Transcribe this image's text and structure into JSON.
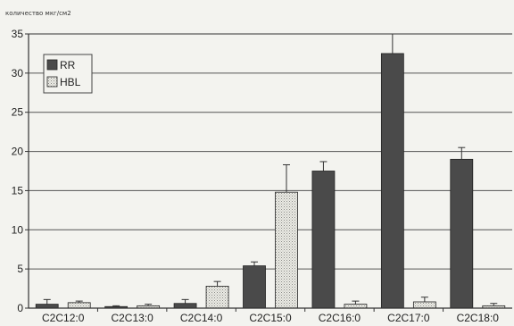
{
  "chart_data": {
    "type": "bar",
    "ylabel": "количество мкг/см2",
    "xlabel": "",
    "ylim": [
      0,
      35
    ],
    "yticks": [
      0,
      5,
      10,
      15,
      20,
      25,
      30,
      35
    ],
    "grid": true,
    "legend_position": "top-left",
    "categories": [
      "C2C12:0",
      "C2C13:0",
      "C2C14:0",
      "C2C15:0",
      "C2C16:0",
      "C2C17:0",
      "C2C18:0"
    ],
    "series": [
      {
        "name": "RR",
        "color": "#4a4a4a",
        "values": [
          0.5,
          0.2,
          0.6,
          5.4,
          17.5,
          32.5,
          19.0
        ],
        "errors": [
          0.6,
          0.1,
          0.5,
          0.5,
          1.2,
          2.5,
          1.5
        ]
      },
      {
        "name": "HBL",
        "color": "#e2e2dc",
        "values": [
          0.7,
          0.3,
          2.8,
          14.8,
          0.5,
          0.8,
          0.3
        ],
        "errors": [
          0.2,
          0.2,
          0.6,
          3.5,
          0.4,
          0.6,
          0.3
        ]
      }
    ]
  }
}
